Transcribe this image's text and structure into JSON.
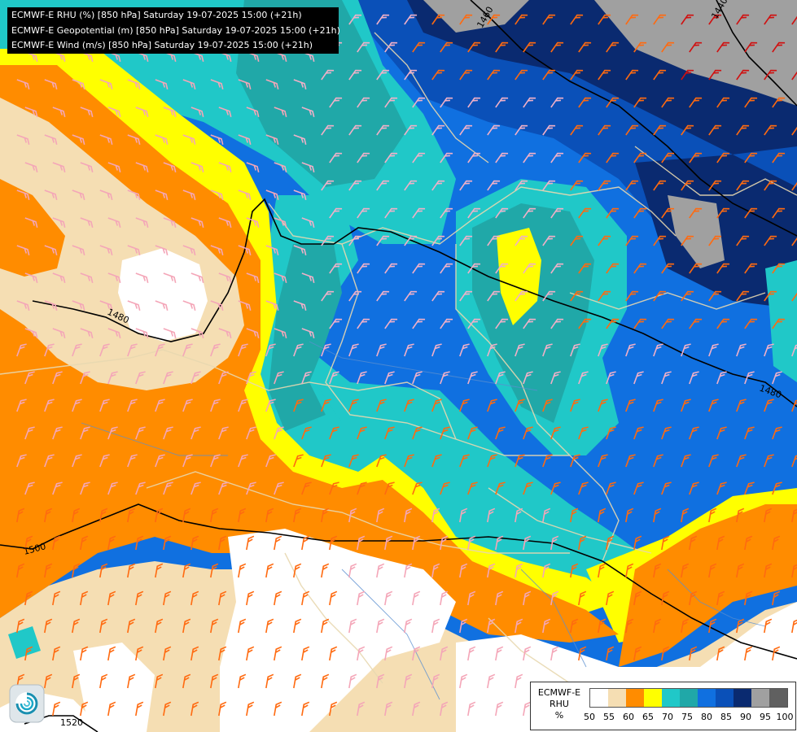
{
  "titles": [
    "ECMWF-E RHU (%) [850 hPa] Saturday 19-07-2025 15:00 (+21h)",
    "ECMWF-E Geopotential (m) [850 hPa] Saturday 19-07-2025 15:00 (+21h)",
    "ECMWF-E Wind (m/s) [850 hPa] Saturday 19-07-2025 15:00 (+21h)"
  ],
  "legend": {
    "title_line1": "ECMWF-E",
    "title_line2": "RHU",
    "unit": "%",
    "ticks": [
      "50",
      "55",
      "60",
      "65",
      "70",
      "75",
      "80",
      "85",
      "90",
      "95",
      "100"
    ],
    "colors": [
      "#ffffff",
      "#f5deb3",
      "#ff8c00",
      "#ffff00",
      "#20c8c8",
      "#20a8a8",
      "#1070e0",
      "#0a50b8",
      "#0a2a70",
      "#a0a0a0",
      "#606060"
    ]
  },
  "contour_labels": {
    "c1460": "1460",
    "c1440": "1440",
    "c1480a": "1480",
    "c1480b": "1480",
    "c1500": "1500",
    "c1520": "1520"
  },
  "logo_icon": "ecmwf-spiral-logo-icon"
}
